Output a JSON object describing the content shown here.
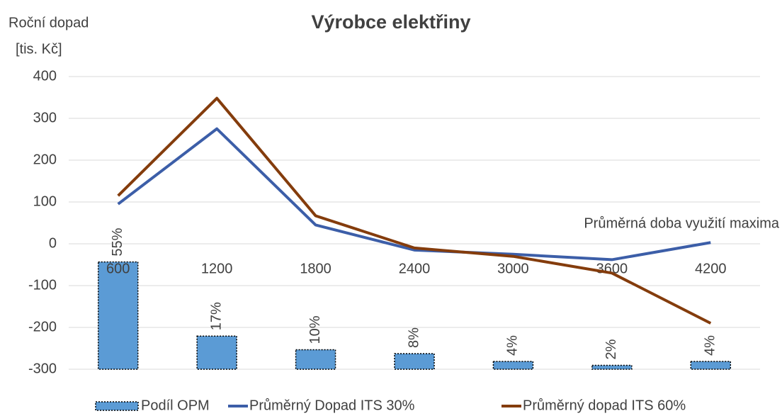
{
  "chart_data": {
    "type": "combo",
    "title": "Výrobce elektřiny",
    "y_label": [
      "Roční dopad",
      "[tis. Kč]"
    ],
    "x_label": "Průměrná doba využití maxima",
    "categories": [
      "600",
      "1200",
      "1800",
      "2400",
      "3000",
      "3600",
      "4200"
    ],
    "ylim": [
      -300,
      400
    ],
    "yticks": [
      -300,
      -200,
      -100,
      0,
      100,
      200,
      300,
      400
    ],
    "y2lim": [
      0,
      150
    ],
    "grid": true,
    "legend": "bottom",
    "series": [
      {
        "name": "Podíl OPM",
        "type": "bar",
        "axis": "y2",
        "color": "#5b9bd5",
        "values": [
          55,
          17,
          10,
          8,
          4,
          2,
          4
        ],
        "value_labels": [
          "55%",
          "17%",
          "10%",
          "8%",
          "4%",
          "2%",
          "4%"
        ]
      },
      {
        "name": "Průměrný Dopad ITS 30%",
        "type": "line",
        "color": "#3c5ea8",
        "values": [
          95,
          275,
          45,
          -15,
          -25,
          -38,
          3
        ]
      },
      {
        "name": "Průměrný dopad ITS 60%",
        "type": "line",
        "color": "#843c0c",
        "values": [
          115,
          348,
          67,
          -10,
          -30,
          -70,
          -190
        ]
      }
    ]
  }
}
